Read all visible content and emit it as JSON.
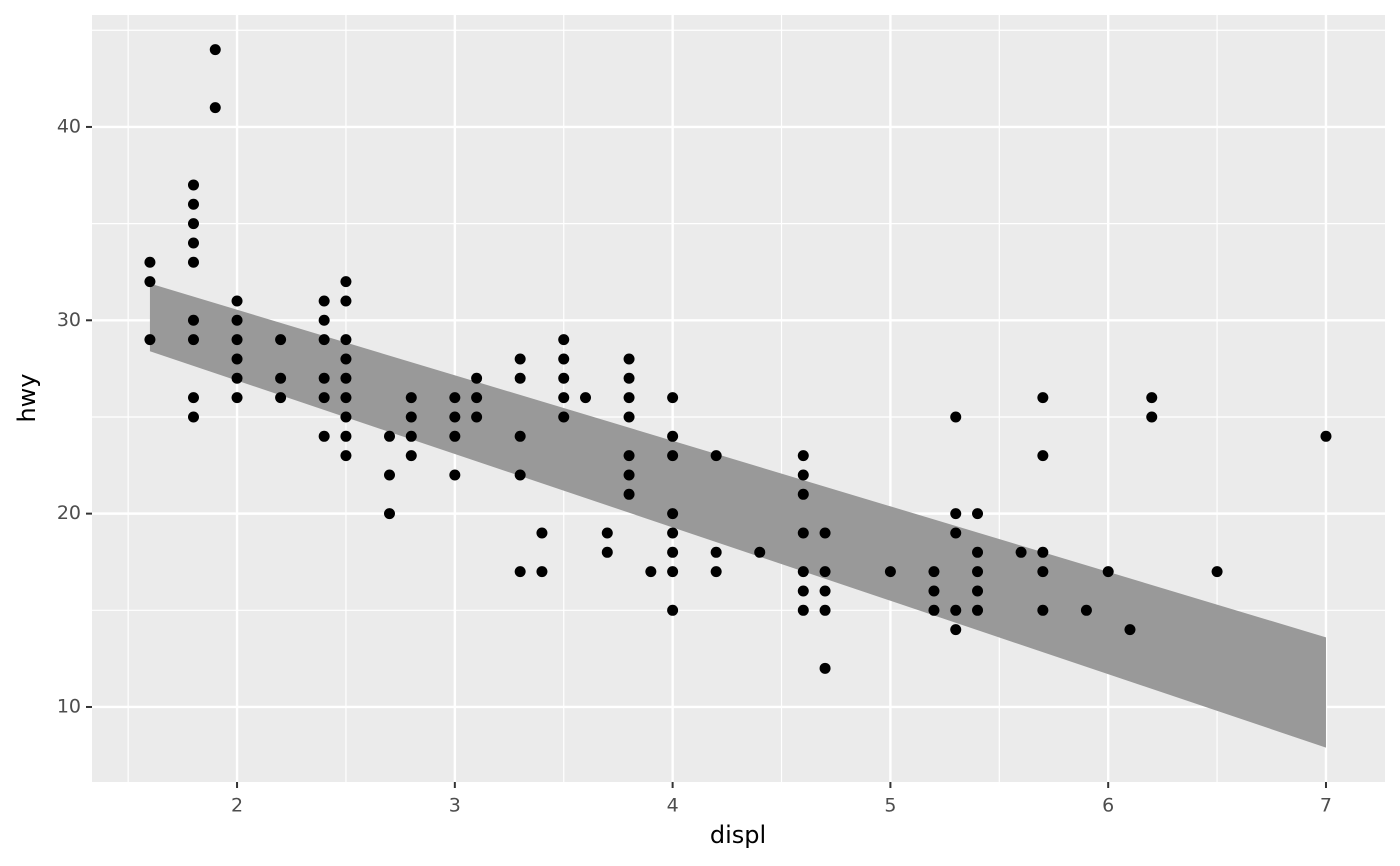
{
  "chart_data": {
    "type": "scatter",
    "x_label": "displ",
    "y_label": "hwy",
    "x": [
      1.6,
      1.6,
      1.6,
      1.8,
      1.8,
      1.8,
      1.8,
      1.8,
      1.8,
      1.8,
      1.8,
      1.8,
      1.9,
      1.9,
      2.0,
      2.0,
      2.0,
      2.0,
      2.0,
      2.0,
      2.2,
      2.2,
      2.2,
      2.4,
      2.4,
      2.4,
      2.4,
      2.4,
      2.4,
      2.5,
      2.5,
      2.5,
      2.5,
      2.5,
      2.5,
      2.5,
      2.5,
      2.5,
      2.7,
      2.7,
      2.7,
      2.8,
      2.8,
      2.8,
      2.8,
      3.0,
      3.0,
      3.0,
      3.0,
      3.1,
      3.1,
      3.1,
      3.3,
      3.3,
      3.3,
      3.3,
      3.3,
      3.4,
      3.4,
      3.5,
      3.5,
      3.5,
      3.5,
      3.5,
      3.6,
      3.7,
      3.7,
      3.8,
      3.8,
      3.8,
      3.8,
      3.8,
      3.8,
      3.8,
      3.9,
      4.0,
      4.0,
      4.0,
      4.0,
      4.0,
      4.0,
      4.0,
      4.0,
      4.2,
      4.2,
      4.2,
      4.4,
      4.6,
      4.6,
      4.6,
      4.6,
      4.6,
      4.6,
      4.6,
      4.7,
      4.7,
      4.7,
      4.7,
      4.7,
      5.0,
      5.2,
      5.2,
      5.2,
      5.3,
      5.3,
      5.3,
      5.3,
      5.3,
      5.4,
      5.4,
      5.4,
      5.4,
      5.4,
      5.6,
      5.7,
      5.7,
      5.7,
      5.7,
      5.7,
      5.9,
      6.0,
      6.1,
      6.2,
      6.2,
      6.5,
      7.0
    ],
    "values": [
      33,
      32,
      29,
      37,
      36,
      35,
      34,
      33,
      30,
      29,
      26,
      25,
      44,
      41,
      31,
      30,
      29,
      28,
      27,
      26,
      29,
      27,
      26,
      31,
      30,
      29,
      27,
      26,
      24,
      32,
      31,
      29,
      28,
      27,
      26,
      25,
      24,
      23,
      24,
      22,
      20,
      26,
      25,
      24,
      23,
      26,
      25,
      24,
      22,
      27,
      26,
      25,
      28,
      27,
      24,
      22,
      17,
      19,
      17,
      29,
      28,
      27,
      26,
      25,
      26,
      19,
      18,
      28,
      27,
      26,
      25,
      23,
      22,
      21,
      17,
      26,
      24,
      23,
      20,
      19,
      18,
      17,
      15,
      23,
      18,
      17,
      18,
      23,
      22,
      21,
      19,
      17,
      16,
      15,
      19,
      17,
      16,
      15,
      12,
      17,
      17,
      16,
      15,
      25,
      20,
      19,
      15,
      14,
      20,
      18,
      17,
      16,
      15,
      18,
      26,
      23,
      18,
      17,
      15,
      15,
      17,
      14,
      26,
      25,
      17,
      24
    ],
    "color": "#000000",
    "ribbon": {
      "x": [
        1.6,
        7.0
      ],
      "ymin": [
        28.4,
        7.9
      ],
      "ymax": [
        31.9,
        13.6
      ],
      "color": "#999999"
    },
    "xlim": [
      1.334,
      7.271
    ],
    "ylim": [
      6.12,
      45.79
    ],
    "xticks": [
      2,
      3,
      4,
      5,
      6,
      7
    ],
    "yticks": [
      10,
      20,
      30,
      40
    ],
    "xminor": [
      1.5,
      2.5,
      3.5,
      4.5,
      5.5,
      6.5
    ],
    "yminor": [
      15,
      25,
      35,
      45
    ],
    "grid": true
  }
}
